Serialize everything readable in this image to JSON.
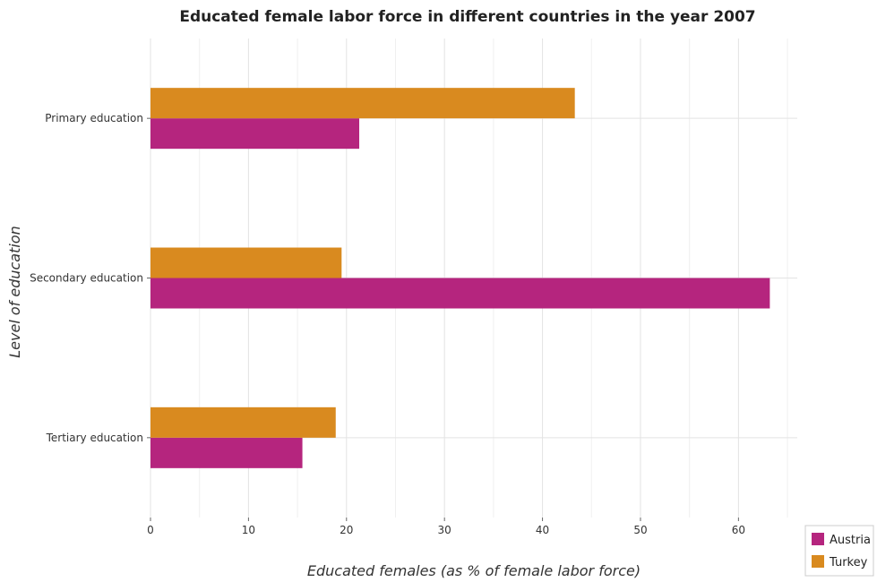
{
  "chart_data": {
    "type": "bar",
    "orientation": "horizontal",
    "title": "Educated female labor force in different countries in the year 2007",
    "xlabel": "Educated females (as % of female labor force)",
    "ylabel": "Level of education",
    "categories": [
      "Primary education",
      "Secondary education",
      "Tertiary education"
    ],
    "series": [
      {
        "name": "Austria",
        "color": "#b5257e",
        "values": [
          21.3,
          63.2,
          15.5
        ]
      },
      {
        "name": "Turkey",
        "color": "#d98a1f",
        "values": [
          43.3,
          19.5,
          18.9
        ]
      }
    ],
    "xlim": [
      0,
      66
    ],
    "xticks": [
      0,
      10,
      20,
      30,
      40,
      50,
      60
    ],
    "grid": true,
    "legend_position": "bottom-right"
  }
}
